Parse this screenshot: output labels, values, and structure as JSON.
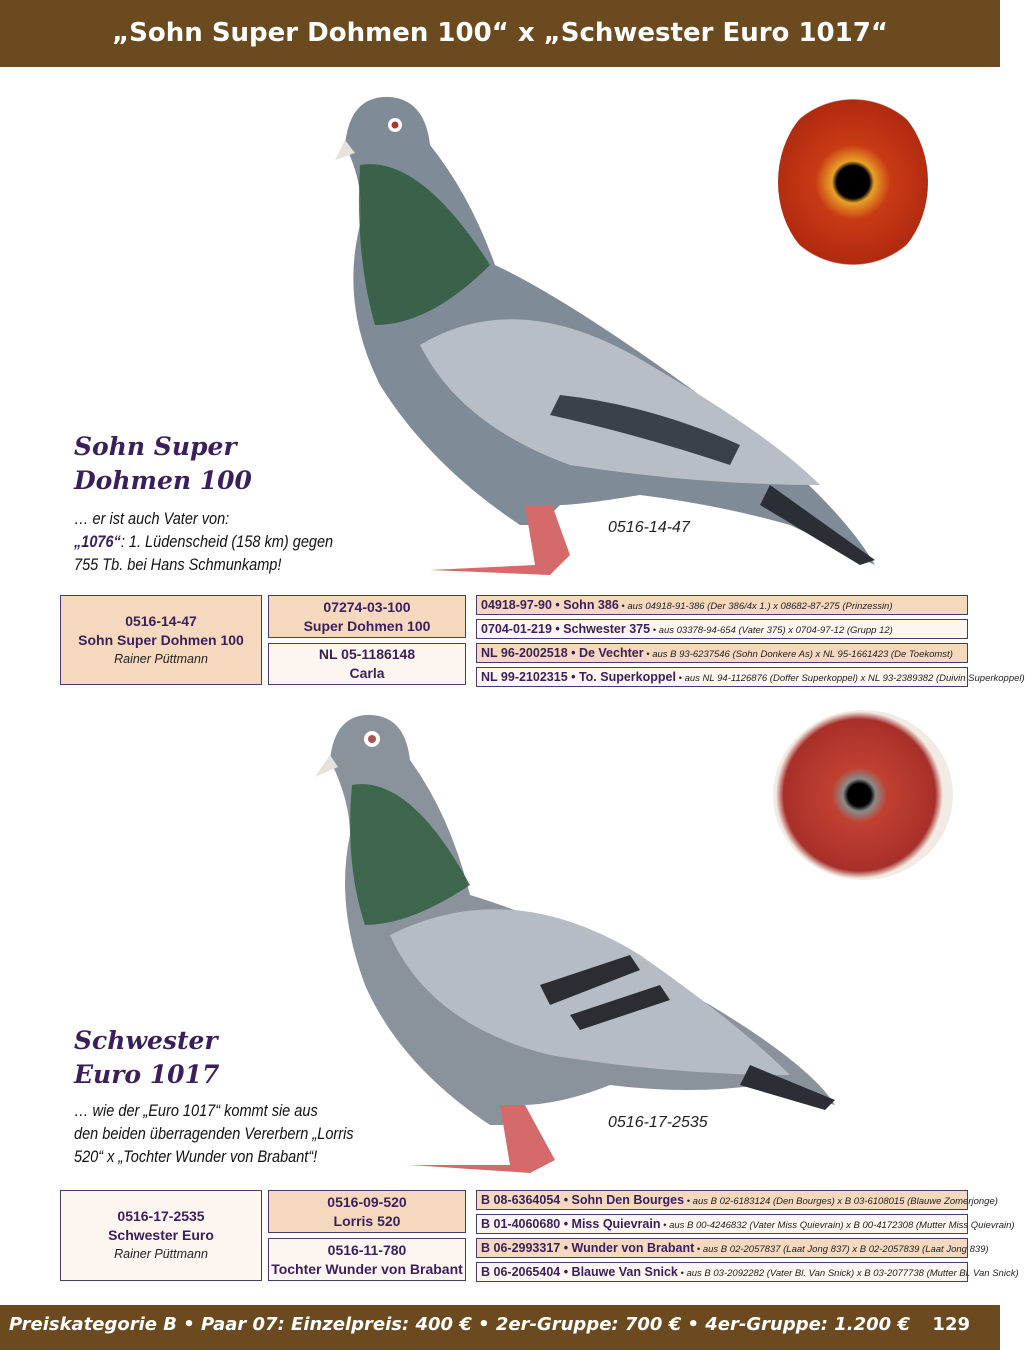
{
  "header": {
    "title": "„Sohn Super Dohmen 100“ x „Schwester Euro 1017“"
  },
  "pigeon1": {
    "name_line1": "Sohn Super",
    "name_line2": "Dohmen 100",
    "desc_line1": "… er ist auch Vater von:",
    "desc_highlight": "„1076“",
    "desc_line2": ": 1. Lüdenscheid (158 km) gegen",
    "desc_line3": "755 Tb. bei Hans Schmunkamp!",
    "ring": "0516-14-47",
    "pedigree": {
      "subject": {
        "ring": "0516-14-47",
        "name": "Sohn Super Dohmen 100",
        "breeder": "Rainer Püttmann"
      },
      "parents": [
        {
          "ring": "07274-03-100",
          "name": "Super Dohmen 100"
        },
        {
          "ring": "NL 05-1186148",
          "name": "Carla"
        }
      ],
      "grandparents": [
        {
          "main": "04918-97-90 • Sohn 386",
          "sub": " • aus 04918-91-386 (Der 386/4x 1.) x 08682-87-275 (Prinzessin)"
        },
        {
          "main": "0704-01-219 • Schwester 375",
          "sub": " • aus 03378-94-654 (Vater 375) x 0704-97-12 (Grupp 12)"
        },
        {
          "main": "NL 96-2002518 • De Vechter",
          "sub": " • aus B 93-6237546 (Sohn Donkere As) x NL 95-1661423 (De Toekomst)"
        },
        {
          "main": "NL 99-2102315 • To. Superkoppel",
          "sub": " • aus NL 94-1126876 (Doffer Superkoppel) x NL 93-2389382 (Duivin Superkoppel)"
        }
      ]
    }
  },
  "pigeon2": {
    "name_line1": "Schwester",
    "name_line2": "Euro 1017",
    "desc_line1": "… wie der „Euro 1017“ kommt sie aus",
    "desc_line2": "den beiden überragenden Vererbern „Lorris",
    "desc_line3": "520“ x „Tochter Wunder von Brabant“!",
    "ring": "0516-17-2535",
    "pedigree": {
      "subject": {
        "ring": "0516-17-2535",
        "name": "Schwester Euro",
        "breeder": "Rainer Püttmann"
      },
      "parents": [
        {
          "ring": "0516-09-520",
          "name": "Lorris 520"
        },
        {
          "ring": "0516-11-780",
          "name": "Tochter Wunder von Brabant"
        }
      ],
      "grandparents": [
        {
          "main": "B 08-6364054 • Sohn Den Bourges",
          "sub": " • aus B 02-6183124 (Den Bourges) x B 03-6108015 (Blauwe Zomerjonge)"
        },
        {
          "main": "B 01-4060680 • Miss Quievrain",
          "sub": " • aus B 00-4246832 (Vater Miss Quievrain) x B 00-4172308 (Mutter Miss Quievrain)"
        },
        {
          "main": "B 06-2993317 • Wunder von Brabant",
          "sub": " • aus B 02-2057837 (Laat Jong 837) x B 02-2057839 (Laat Jong 839)"
        },
        {
          "main": "B 06-2065404 • Blauwe Van Snick",
          "sub": " • aus B 03-2092282 (Vater Bl. Van Snick) x B 03-2077738 (Mutter Bl. Van Snick)"
        }
      ]
    }
  },
  "footer": {
    "text": "Preiskategorie B • Paar 07: Einzelpreis: 400 € • 2er-Gruppe: 700 € • 4er-Gruppe: 1.200 €",
    "page": "129"
  },
  "colors": {
    "brown": "#6b4a1f",
    "purple": "#3a1f5c",
    "peach": "#f5d9be"
  }
}
